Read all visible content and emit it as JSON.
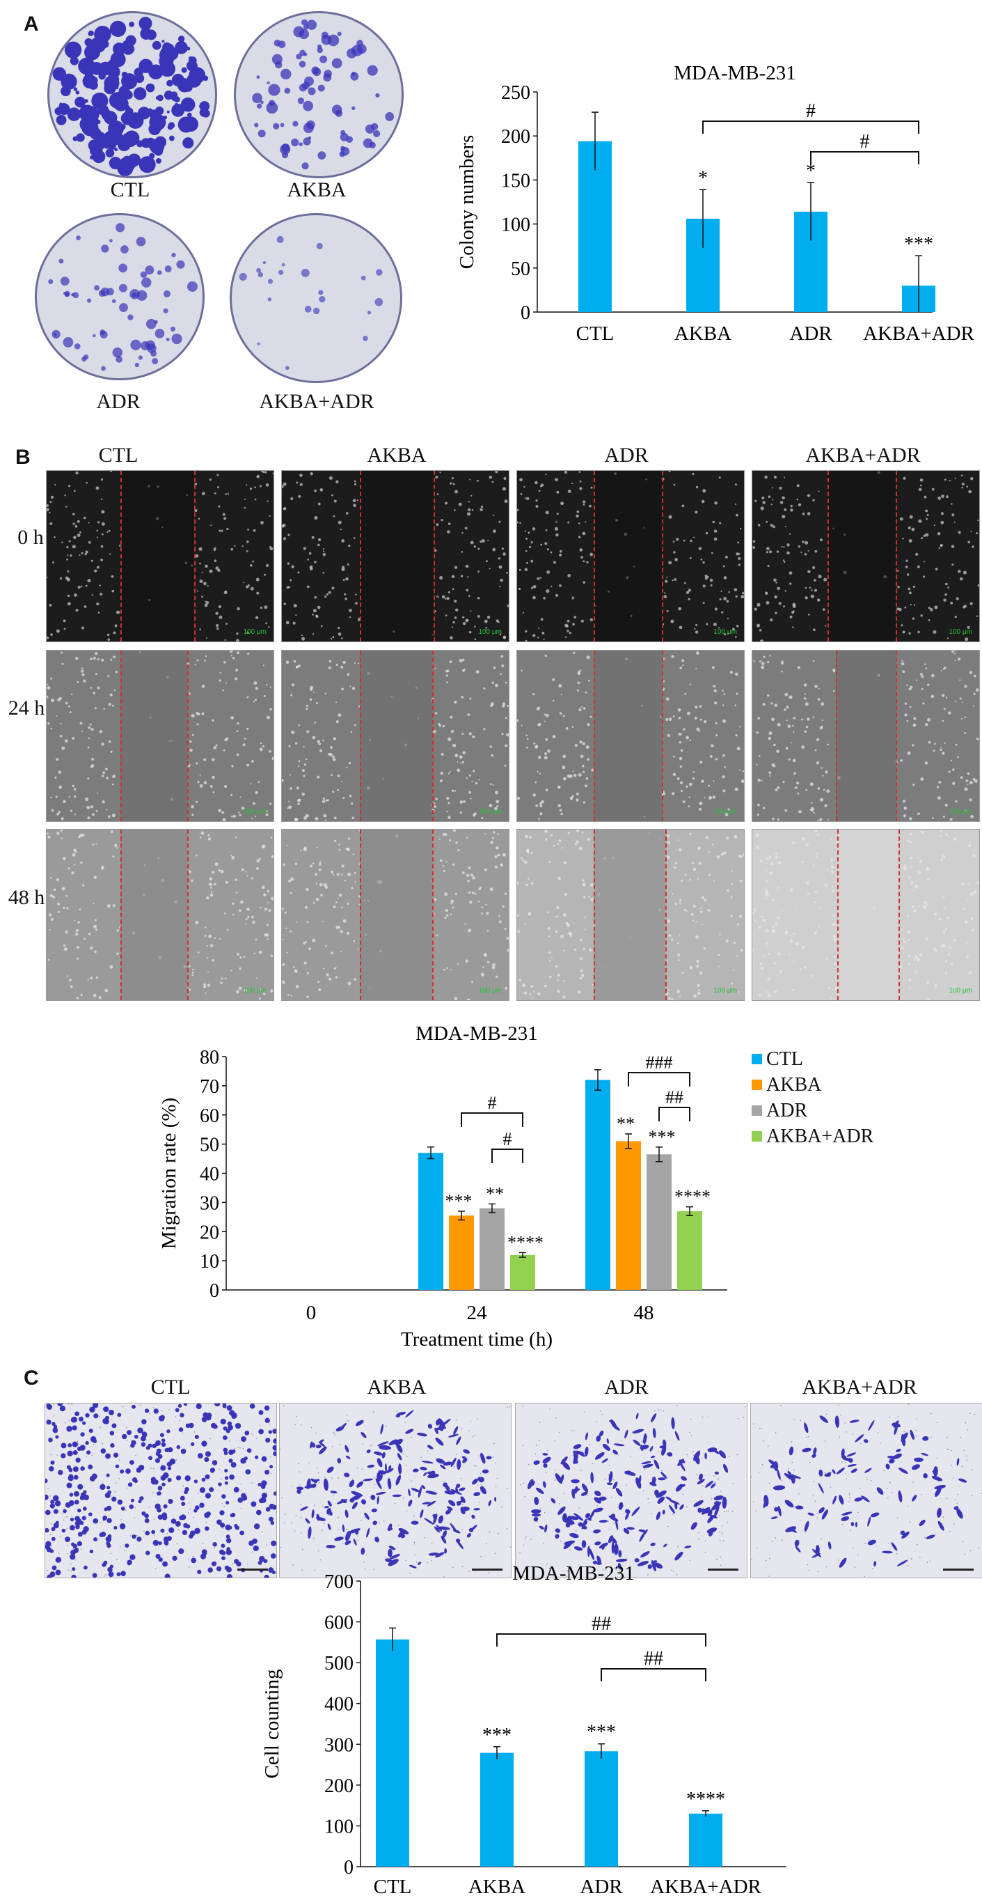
{
  "panels": [
    "A",
    "B",
    "C"
  ],
  "colony_dishes": [
    {
      "label": "CTL",
      "density": 1.0
    },
    {
      "label": "AKBA",
      "density": 0.45
    },
    {
      "label": "ADR",
      "density": 0.35
    },
    {
      "label": "AKBA+ADR",
      "density": 0.12
    }
  ],
  "wound": {
    "columns": [
      "CTL",
      "AKBA",
      "ADR",
      "AKBA+ADR"
    ],
    "rows": [
      "0 h",
      "24 h",
      "48 h"
    ],
    "scale_text": "100 μm"
  },
  "transwell": {
    "columns": [
      "CTL",
      "AKBA",
      "ADR",
      "AKBA+ADR"
    ],
    "density": [
      1.0,
      0.45,
      0.45,
      0.25
    ]
  },
  "colors": {
    "CTL": "#00adef",
    "AKBA": "#ff9900",
    "ADR": "#a5a5a5",
    "AKBA+ADR": "#92d050",
    "stain": "#3a35b8",
    "dish_bg": "#d9dbe6",
    "line": "#111111"
  },
  "chart_data": [
    {
      "type": "bar",
      "title": "MDA-MB-231",
      "ylabel": "Colony numbers",
      "xlabel": "",
      "categories": [
        "CTL",
        "AKBA",
        "ADR",
        "AKBA+ADR"
      ],
      "values": [
        194,
        106,
        114,
        30
      ],
      "errors": [
        33,
        33,
        33,
        34
      ],
      "ylim": [
        0,
        250
      ],
      "yticks": [
        0,
        50,
        100,
        150,
        200,
        250
      ],
      "significance": [
        "",
        "*",
        "*",
        "***"
      ],
      "brackets": [
        {
          "from": 1,
          "to": 3,
          "label": "#"
        },
        {
          "from": 2,
          "to": 3,
          "label": "#"
        }
      ]
    },
    {
      "type": "bar",
      "title": "MDA-MB-231",
      "ylabel": "Migration rate (%)",
      "xlabel": "Treatment time (h)",
      "categories": [
        "0",
        "24",
        "48"
      ],
      "series": [
        {
          "name": "CTL",
          "values": [
            0,
            47,
            72
          ],
          "errors": [
            0,
            2,
            3.5
          ]
        },
        {
          "name": "AKBA",
          "values": [
            0,
            25.5,
            51
          ],
          "errors": [
            0,
            1.5,
            2.5
          ]
        },
        {
          "name": "ADR",
          "values": [
            0,
            28,
            46.5
          ],
          "errors": [
            0,
            1.5,
            2.5
          ]
        },
        {
          "name": "AKBA+ADR",
          "values": [
            0,
            12,
            27
          ],
          "errors": [
            0,
            0.8,
            1.5
          ]
        }
      ],
      "ylim": [
        0,
        80
      ],
      "yticks": [
        0,
        10,
        20,
        30,
        40,
        50,
        60,
        70,
        80
      ],
      "significance": [
        [
          "",
          "",
          "",
          ""
        ],
        [
          "",
          "***",
          "**",
          "****"
        ],
        [
          "",
          "**",
          "***",
          "****"
        ]
      ],
      "brackets": [
        {
          "group": 1,
          "from": 1,
          "to": 3,
          "label": "#"
        },
        {
          "group": 1,
          "from": 2,
          "to": 3,
          "label": "#"
        },
        {
          "group": 2,
          "from": 1,
          "to": 3,
          "label": "###"
        },
        {
          "group": 2,
          "from": 2,
          "to": 3,
          "label": "##"
        }
      ],
      "legend": "right"
    },
    {
      "type": "bar",
      "title": "MDA-MB-231",
      "ylabel": "Cell counting",
      "xlabel": "",
      "categories": [
        "CTL",
        "AKBA",
        "ADR",
        "AKBA+ADR"
      ],
      "values": [
        557,
        279,
        283,
        130
      ],
      "errors": [
        28,
        15,
        18,
        7
      ],
      "ylim": [
        0,
        700
      ],
      "yticks": [
        0,
        100,
        200,
        300,
        400,
        500,
        600,
        700
      ],
      "significance": [
        "",
        "***",
        "***",
        "****"
      ],
      "brackets": [
        {
          "from": 1,
          "to": 3,
          "label": "##"
        },
        {
          "from": 2,
          "to": 3,
          "label": "##"
        }
      ]
    }
  ]
}
